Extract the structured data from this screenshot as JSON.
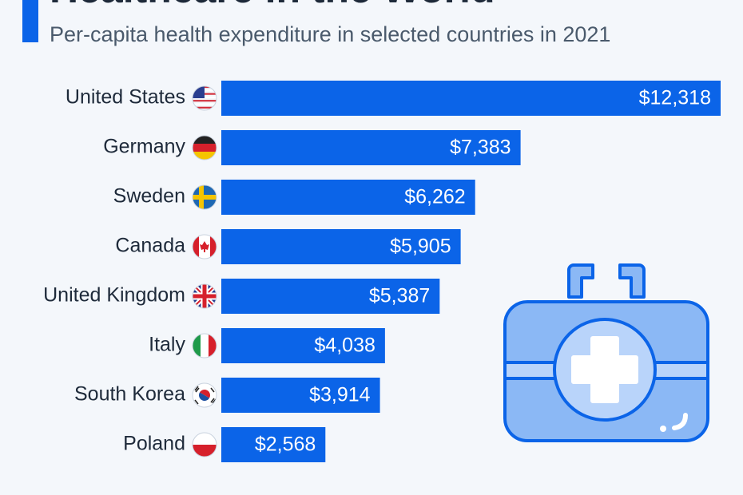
{
  "chart_data": {
    "type": "bar",
    "orientation": "horizontal",
    "title": "Healthcare in the World",
    "subtitle": "Per-capita health expenditure in selected countries in 2021",
    "categories": [
      "United States",
      "Germany",
      "Sweden",
      "Canada",
      "United Kingdom",
      "Italy",
      "South Korea",
      "Poland"
    ],
    "values": [
      12318,
      7383,
      6262,
      5905,
      5387,
      4038,
      3914,
      2568
    ],
    "value_labels": [
      "$12,318",
      "$7,383",
      "$6,262",
      "$5,905",
      "$5,387",
      "$4,038",
      "$3,914",
      "$2,568"
    ],
    "color": "#0b64e8"
  }
}
